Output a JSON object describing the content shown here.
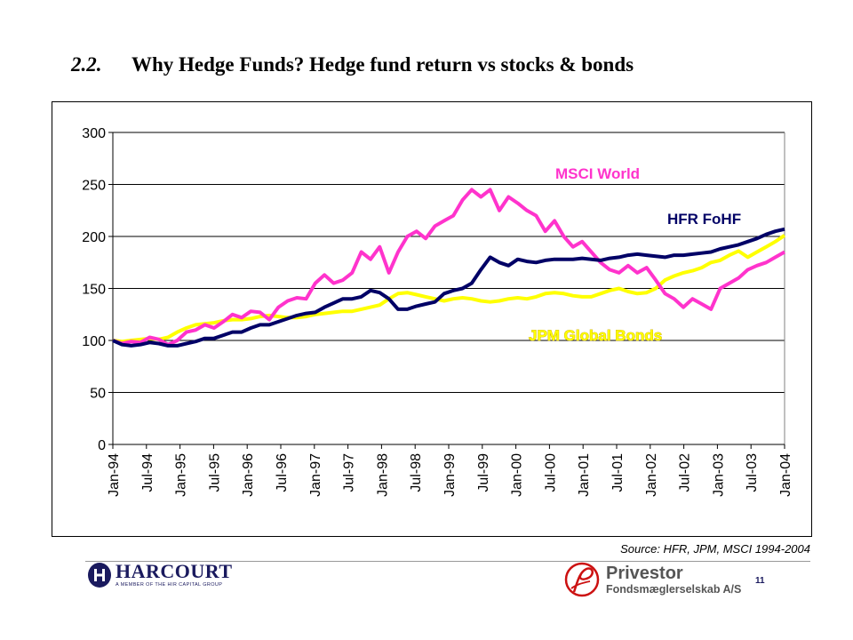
{
  "slide": {
    "number": "2.2.",
    "title": "Why Hedge Funds? Hedge fund return vs stocks & bonds",
    "source": "Source: HFR, JPM, MSCI 1994-2004",
    "page_number": "11"
  },
  "footer": {
    "left_logo": {
      "brand": "HARCOURT",
      "tagline": "A MEMBER OF THE HIR CAPITAL GROUP",
      "icon": "harcourt-h-logo-icon"
    },
    "right_logo": {
      "brand": "Privestor",
      "tagline": "Fondsmæglerselskab A/S",
      "icon": "privestor-p-logo-icon"
    }
  },
  "chart_data": {
    "type": "line",
    "title": "",
    "xlabel": "",
    "ylabel": "",
    "ylim": [
      0,
      300
    ],
    "yticks": [
      0,
      50,
      100,
      150,
      200,
      250,
      300
    ],
    "grid": "horizontal",
    "legend": "inline labels",
    "x_tick_labels": [
      "Jan-94",
      "Jul-94",
      "Jan-95",
      "Jul-95",
      "Jan-96",
      "Jul-96",
      "Jan-97",
      "Jul-97",
      "Jan-98",
      "Jul-98",
      "Jan-99",
      "Jul-99",
      "Jan-00",
      "Jul-00",
      "Jan-01",
      "Jul-01",
      "Jan-02",
      "Jul-02",
      "Jan-03",
      "Jul-03",
      "Jan-04"
    ],
    "series": [
      {
        "name": "MSCI World",
        "color": "#ff33cc",
        "values": [
          100,
          97,
          99,
          98,
          103,
          101,
          96,
          100,
          108,
          110,
          115,
          112,
          118,
          125,
          122,
          128,
          127,
          120,
          132,
          138,
          141,
          140,
          155,
          163,
          155,
          158,
          165,
          185,
          178,
          190,
          165,
          185,
          200,
          205,
          198,
          210,
          215,
          220,
          235,
          245,
          238,
          245,
          225,
          238,
          232,
          225,
          220,
          205,
          215,
          200,
          190,
          195,
          185,
          175,
          168,
          165,
          172,
          165,
          170,
          158,
          145,
          140,
          132,
          140,
          135,
          130,
          150,
          155,
          160,
          168,
          172,
          175,
          180,
          185
        ]
      },
      {
        "name": "HFR FoHF",
        "color": "#000066",
        "values": [
          100,
          96,
          95,
          96,
          98,
          97,
          95,
          95,
          97,
          99,
          102,
          102,
          105,
          108,
          108,
          112,
          115,
          115,
          118,
          121,
          124,
          126,
          127,
          132,
          136,
          140,
          140,
          142,
          148,
          146,
          140,
          130,
          130,
          133,
          135,
          137,
          145,
          148,
          150,
          155,
          168,
          180,
          175,
          172,
          178,
          176,
          175,
          177,
          178,
          178,
          178,
          179,
          178,
          177,
          179,
          180,
          182,
          183,
          182,
          181,
          180,
          182,
          182,
          183,
          184,
          185,
          188,
          190,
          192,
          195,
          198,
          202,
          205,
          207
        ]
      },
      {
        "name": "JPM Global Bonds",
        "color": "#ffff00",
        "values": [
          100,
          99,
          100,
          101,
          102,
          101,
          103,
          108,
          112,
          115,
          116,
          117,
          119,
          120,
          120,
          121,
          123,
          124,
          123,
          122,
          122,
          123,
          125,
          126,
          127,
          128,
          128,
          130,
          132,
          134,
          140,
          145,
          146,
          144,
          142,
          140,
          138,
          140,
          141,
          140,
          138,
          137,
          138,
          140,
          141,
          140,
          142,
          145,
          146,
          145,
          143,
          142,
          142,
          145,
          148,
          150,
          147,
          145,
          146,
          150,
          158,
          162,
          165,
          167,
          170,
          175,
          177,
          182,
          186,
          180,
          185,
          190,
          195,
          201
        ]
      }
    ],
    "annotations": [
      {
        "text": "MSCI World",
        "color": "#ff33cc"
      },
      {
        "text": "HFR FoHF",
        "color": "#000066"
      },
      {
        "text": "JPM Global Bonds",
        "color": "#ffff00"
      }
    ]
  }
}
